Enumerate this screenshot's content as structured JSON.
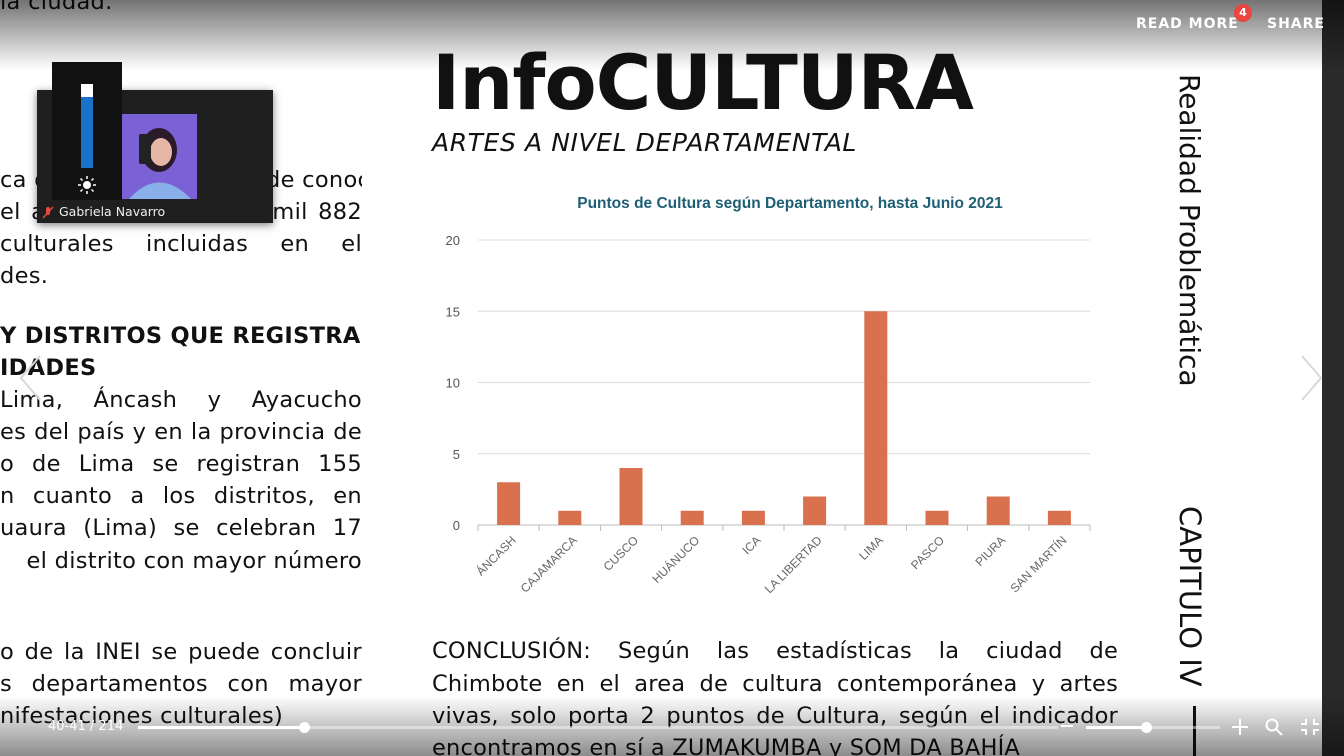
{
  "left_text": {
    "top_fragment": "la ciudad.",
    "para1": [
      "ca de Chimbote se puede conocer",
      "el año 2021 existen 4 mil 882",
      "culturales incluidas en el",
      "des."
    ],
    "heading": [
      "Y DISTRITOS QUE REGISTRAN",
      "IDADES"
    ],
    "para2": [
      "Lima, Áncash y Ayacucho",
      "es del país y en la provincia de",
      "o de Lima se registran 155",
      "n cuanto a los distritos, en",
      "uaura (Lima) se celebran 17",
      "el distrito con mayor número"
    ],
    "para3": [
      "o de la INEI se puede concluir",
      "s departamentos con mayor",
      "nifestaciones culturales)"
    ]
  },
  "title": "InfoCULTURA",
  "subtitle": "ARTES A NIVEL DEPARTAMENTAL",
  "chart_data": {
    "type": "bar",
    "title": "Puntos de Cultura según Departamento, hasta Junio 2021",
    "categories": [
      "ÁNCASH",
      "CAJAMARCA",
      "CUSCO",
      "HUÁNUCO",
      "ICA",
      "LA LIBERTAD",
      "LIMA",
      "PASCO",
      "PIURA",
      "SAN MARTÍN"
    ],
    "values": [
      3,
      1,
      4,
      1,
      1,
      2,
      15,
      1,
      2,
      1
    ],
    "ylim": [
      0,
      20
    ],
    "yticks": [
      0,
      5,
      10,
      15,
      20
    ],
    "grid": true,
    "bar_color": "#d9704e"
  },
  "conclusion": [
    "CONCLUSIÓN: Según las estadísticas la ciudad de",
    "Chimbote en el area de cultura contemporánea y artes",
    "vivas, solo porta 2 puntos de Cultura, según el indicador",
    "encontramos en sí a ZUMAKUMBA y SOM DA BAHÍA"
  ],
  "vertical": {
    "realidad": "Realidad Problemática",
    "capitulo": "CAPITULO IV"
  },
  "toolbar": {
    "read_more": "READ MORE",
    "read_more_badge": "4",
    "share": "SHARE"
  },
  "video": {
    "participant_name": "Gabriela Navarro",
    "volume_level": 0.85
  },
  "viewer": {
    "page_counter": "40-41 / 214",
    "progress": 0.18,
    "zoom": 0.45
  },
  "icons": {
    "prev": "chevron-left-icon",
    "next": "chevron-right-icon",
    "zoom_out": "minus-icon",
    "zoom_in": "plus-icon",
    "search": "magnifier-icon",
    "fullscreen": "fullscreen-icon"
  }
}
